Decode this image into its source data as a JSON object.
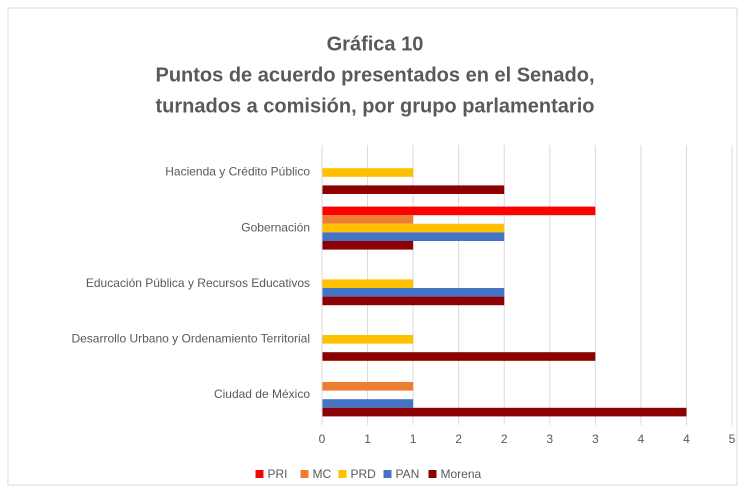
{
  "chart_data": {
    "type": "barh",
    "title": "Gráfica 10",
    "subtitle": [
      "Puntos de acuerdo presentados en el Senado,",
      "turnados a comisión, por grupo parlamentario"
    ],
    "categories": [
      "Hacienda y Crédito Público",
      "Gobernación",
      "Educación Pública y Recursos Educativos",
      "Desarrollo Urbano y Ordenamiento Territorial",
      "Ciudad de México"
    ],
    "series": [
      {
        "name": "PRI",
        "color": "#ff0000",
        "values": [
          0,
          3,
          0,
          0,
          0
        ]
      },
      {
        "name": "MC",
        "color": "#ed7d31",
        "values": [
          0,
          1,
          0,
          0,
          1
        ]
      },
      {
        "name": "PRD",
        "color": "#ffc000",
        "values": [
          1,
          2,
          1,
          1,
          0
        ]
      },
      {
        "name": "PAN",
        "color": "#4472c4",
        "values": [
          0,
          2,
          2,
          0,
          1
        ]
      },
      {
        "name": "Morena",
        "color": "#8b0000",
        "values": [
          2,
          1,
          2,
          3,
          4
        ]
      }
    ],
    "xlim": [
      0,
      4.5
    ],
    "xticks": [
      0,
      {
        "value": 0.5,
        "label": "1"
      },
      1,
      {
        "value": 1.5,
        "label": "2"
      },
      2,
      {
        "value": 2.5,
        "label": "3"
      },
      3,
      {
        "value": 3.5,
        "label": "4"
      },
      4,
      {
        "value": 4.5,
        "label": "5"
      }
    ],
    "grid": true,
    "legend": "bottom"
  }
}
